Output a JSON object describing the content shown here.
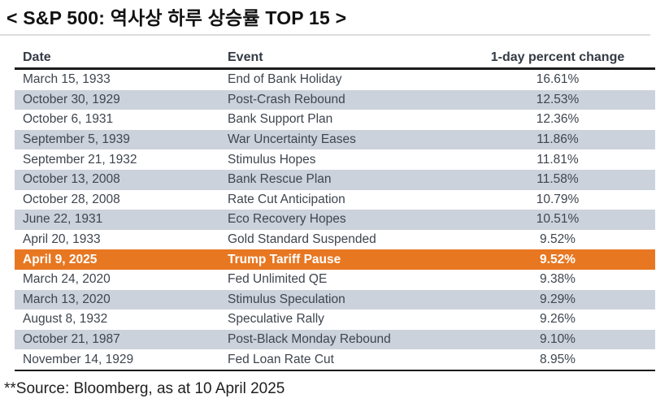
{
  "title": "< S&P 500: 역사상 하루 상승률 TOP 15 >",
  "table": {
    "columns": [
      "Date",
      "Event",
      "1-day percent change"
    ],
    "rows": [
      {
        "date": "March 15, 1933",
        "event": "End of Bank Holiday",
        "change": "16.61%",
        "highlight": false
      },
      {
        "date": "October 30, 1929",
        "event": "Post-Crash Rebound",
        "change": "12.53%",
        "highlight": false
      },
      {
        "date": "October 6, 1931",
        "event": "Bank Support Plan",
        "change": "12.36%",
        "highlight": false
      },
      {
        "date": "September 5, 1939",
        "event": "War Uncertainty Eases",
        "change": "11.86%",
        "highlight": false
      },
      {
        "date": "September 21, 1932",
        "event": "Stimulus Hopes",
        "change": "11.81%",
        "highlight": false
      },
      {
        "date": "October 13, 2008",
        "event": "Bank Rescue Plan",
        "change": "11.58%",
        "highlight": false
      },
      {
        "date": "October 28, 2008",
        "event": "Rate Cut Anticipation",
        "change": "10.79%",
        "highlight": false
      },
      {
        "date": "June 22, 1931",
        "event": "Eco Recovery Hopes",
        "change": "10.51%",
        "highlight": false
      },
      {
        "date": "April 20, 1933",
        "event": "Gold Standard Suspended",
        "change": "9.52%",
        "highlight": false
      },
      {
        "date": "April 9, 2025",
        "event": "Trump Tariff Pause",
        "change": "9.52%",
        "highlight": true
      },
      {
        "date": "March 24, 2020",
        "event": "Fed Unlimited QE",
        "change": "9.38%",
        "highlight": false
      },
      {
        "date": "March 13, 2020",
        "event": "Stimulus Speculation",
        "change": "9.29%",
        "highlight": false
      },
      {
        "date": "August 8, 1932",
        "event": "Speculative Rally",
        "change": "9.26%",
        "highlight": false
      },
      {
        "date": "October 21, 1987",
        "event": "Post-Black Monday Rebound",
        "change": "9.10%",
        "highlight": false
      },
      {
        "date": "November 14, 1929",
        "event": "Fed Loan Rate Cut",
        "change": "8.95%",
        "highlight": false
      }
    ]
  },
  "footer": "**Source: Bloomberg, as at 10 April 2025",
  "colors": {
    "stripe": "#ccd2dc",
    "highlight": "#e87722",
    "body_text": "#3e454f"
  }
}
